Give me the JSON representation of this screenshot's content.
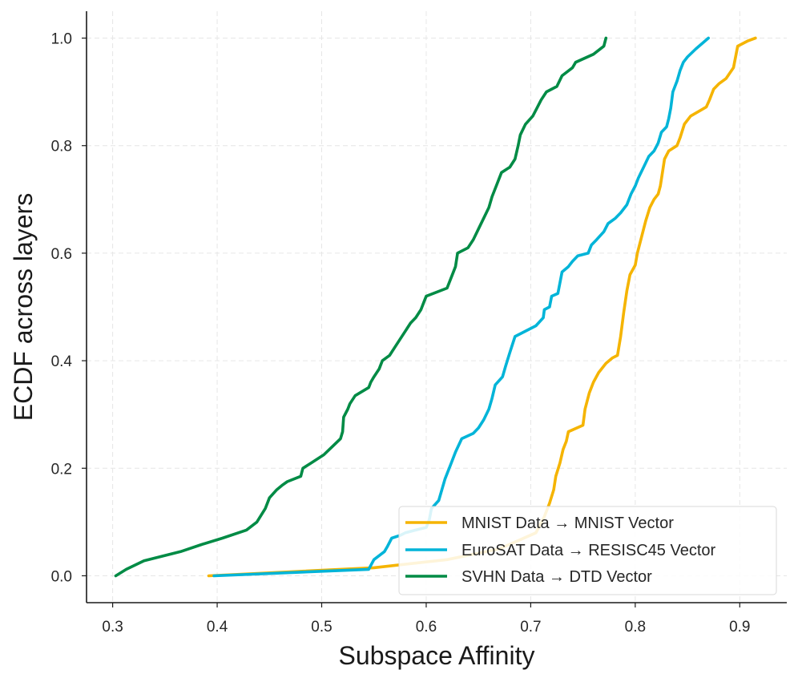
{
  "chart_data": {
    "type": "line",
    "title": "",
    "xlabel": "Subspace Affinity",
    "ylabel": "ECDF across layers",
    "xlim": [
      0.275,
      0.945
    ],
    "ylim": [
      -0.05,
      1.05
    ],
    "xticks": [
      0.3,
      0.4,
      0.5,
      0.6,
      0.7,
      0.8,
      0.9
    ],
    "xtick_labels": [
      "0.3",
      "0.4",
      "0.5",
      "0.6",
      "0.7",
      "0.8",
      "0.9"
    ],
    "yticks": [
      0.0,
      0.2,
      0.4,
      0.6,
      0.8,
      1.0
    ],
    "ytick_labels": [
      "0.0",
      "0.2",
      "0.4",
      "0.6",
      "0.8",
      "1.0"
    ],
    "grid": true,
    "legend_position": "lower-right",
    "series": [
      {
        "name": "MNIST Data → MNIST Vector",
        "color": "#f5b400",
        "points": [
          [
            0.392,
            0.0
          ],
          [
            0.55,
            0.015
          ],
          [
            0.62,
            0.03
          ],
          [
            0.67,
            0.05
          ],
          [
            0.705,
            0.08
          ],
          [
            0.713,
            0.11
          ],
          [
            0.718,
            0.135
          ],
          [
            0.722,
            0.16
          ],
          [
            0.724,
            0.185
          ],
          [
            0.728,
            0.21
          ],
          [
            0.731,
            0.235
          ],
          [
            0.734,
            0.25
          ],
          [
            0.736,
            0.268
          ],
          [
            0.75,
            0.28
          ],
          [
            0.752,
            0.31
          ],
          [
            0.756,
            0.34
          ],
          [
            0.76,
            0.36
          ],
          [
            0.765,
            0.378
          ],
          [
            0.772,
            0.395
          ],
          [
            0.778,
            0.405
          ],
          [
            0.783,
            0.41
          ],
          [
            0.786,
            0.445
          ],
          [
            0.789,
            0.49
          ],
          [
            0.792,
            0.53
          ],
          [
            0.795,
            0.56
          ],
          [
            0.8,
            0.578
          ],
          [
            0.802,
            0.6
          ],
          [
            0.806,
            0.63
          ],
          [
            0.81,
            0.66
          ],
          [
            0.814,
            0.685
          ],
          [
            0.818,
            0.7
          ],
          [
            0.822,
            0.71
          ],
          [
            0.824,
            0.725
          ],
          [
            0.826,
            0.75
          ],
          [
            0.828,
            0.775
          ],
          [
            0.832,
            0.79
          ],
          [
            0.84,
            0.8
          ],
          [
            0.843,
            0.815
          ],
          [
            0.847,
            0.84
          ],
          [
            0.853,
            0.855
          ],
          [
            0.862,
            0.865
          ],
          [
            0.868,
            0.872
          ],
          [
            0.871,
            0.885
          ],
          [
            0.875,
            0.905
          ],
          [
            0.88,
            0.915
          ],
          [
            0.887,
            0.925
          ],
          [
            0.894,
            0.945
          ],
          [
            0.898,
            0.985
          ],
          [
            0.908,
            0.995
          ],
          [
            0.915,
            1.0
          ]
        ]
      },
      {
        "name": "EuroSAT Data → RESISC45 Vector",
        "color": "#00b4d8",
        "points": [
          [
            0.397,
            0.0
          ],
          [
            0.545,
            0.012
          ],
          [
            0.55,
            0.03
          ],
          [
            0.56,
            0.045
          ],
          [
            0.563,
            0.055
          ],
          [
            0.567,
            0.07
          ],
          [
            0.575,
            0.075
          ],
          [
            0.58,
            0.08
          ],
          [
            0.59,
            0.085
          ],
          [
            0.6,
            0.09
          ],
          [
            0.603,
            0.105
          ],
          [
            0.605,
            0.125
          ],
          [
            0.612,
            0.14
          ],
          [
            0.615,
            0.16
          ],
          [
            0.618,
            0.18
          ],
          [
            0.624,
            0.21
          ],
          [
            0.628,
            0.23
          ],
          [
            0.634,
            0.255
          ],
          [
            0.645,
            0.265
          ],
          [
            0.65,
            0.275
          ],
          [
            0.655,
            0.29
          ],
          [
            0.66,
            0.31
          ],
          [
            0.663,
            0.33
          ],
          [
            0.666,
            0.355
          ],
          [
            0.673,
            0.37
          ],
          [
            0.676,
            0.39
          ],
          [
            0.68,
            0.415
          ],
          [
            0.685,
            0.445
          ],
          [
            0.69,
            0.45
          ],
          [
            0.705,
            0.465
          ],
          [
            0.712,
            0.48
          ],
          [
            0.713,
            0.495
          ],
          [
            0.718,
            0.5
          ],
          [
            0.72,
            0.52
          ],
          [
            0.726,
            0.525
          ],
          [
            0.728,
            0.545
          ],
          [
            0.73,
            0.565
          ],
          [
            0.736,
            0.575
          ],
          [
            0.74,
            0.585
          ],
          [
            0.745,
            0.595
          ],
          [
            0.755,
            0.6
          ],
          [
            0.758,
            0.615
          ],
          [
            0.763,
            0.625
          ],
          [
            0.77,
            0.64
          ],
          [
            0.774,
            0.655
          ],
          [
            0.781,
            0.665
          ],
          [
            0.786,
            0.675
          ],
          [
            0.792,
            0.69
          ],
          [
            0.796,
            0.71
          ],
          [
            0.8,
            0.725
          ],
          [
            0.803,
            0.74
          ],
          [
            0.808,
            0.76
          ],
          [
            0.813,
            0.78
          ],
          [
            0.818,
            0.79
          ],
          [
            0.822,
            0.805
          ],
          [
            0.825,
            0.825
          ],
          [
            0.83,
            0.835
          ],
          [
            0.832,
            0.85
          ],
          [
            0.834,
            0.87
          ],
          [
            0.836,
            0.9
          ],
          [
            0.84,
            0.92
          ],
          [
            0.843,
            0.94
          ],
          [
            0.846,
            0.955
          ],
          [
            0.85,
            0.965
          ],
          [
            0.858,
            0.98
          ],
          [
            0.87,
            1.0
          ]
        ]
      },
      {
        "name": "SVHN Data → DTD Vector",
        "color": "#008b45",
        "points": [
          [
            0.303,
            0.0
          ],
          [
            0.313,
            0.012
          ],
          [
            0.33,
            0.028
          ],
          [
            0.365,
            0.045
          ],
          [
            0.385,
            0.058
          ],
          [
            0.405,
            0.07
          ],
          [
            0.428,
            0.085
          ],
          [
            0.438,
            0.1
          ],
          [
            0.446,
            0.125
          ],
          [
            0.45,
            0.145
          ],
          [
            0.457,
            0.16
          ],
          [
            0.462,
            0.168
          ],
          [
            0.467,
            0.175
          ],
          [
            0.48,
            0.185
          ],
          [
            0.482,
            0.2
          ],
          [
            0.49,
            0.21
          ],
          [
            0.502,
            0.225
          ],
          [
            0.51,
            0.24
          ],
          [
            0.518,
            0.255
          ],
          [
            0.52,
            0.268
          ],
          [
            0.521,
            0.295
          ],
          [
            0.525,
            0.31
          ],
          [
            0.527,
            0.32
          ],
          [
            0.532,
            0.335
          ],
          [
            0.545,
            0.35
          ],
          [
            0.547,
            0.36
          ],
          [
            0.55,
            0.37
          ],
          [
            0.555,
            0.385
          ],
          [
            0.558,
            0.4
          ],
          [
            0.565,
            0.41
          ],
          [
            0.57,
            0.425
          ],
          [
            0.575,
            0.44
          ],
          [
            0.58,
            0.455
          ],
          [
            0.585,
            0.47
          ],
          [
            0.59,
            0.48
          ],
          [
            0.595,
            0.495
          ],
          [
            0.598,
            0.51
          ],
          [
            0.6,
            0.52
          ],
          [
            0.62,
            0.535
          ],
          [
            0.625,
            0.56
          ],
          [
            0.628,
            0.575
          ],
          [
            0.63,
            0.6
          ],
          [
            0.64,
            0.61
          ],
          [
            0.645,
            0.625
          ],
          [
            0.65,
            0.645
          ],
          [
            0.655,
            0.665
          ],
          [
            0.66,
            0.685
          ],
          [
            0.663,
            0.705
          ],
          [
            0.667,
            0.725
          ],
          [
            0.672,
            0.75
          ],
          [
            0.68,
            0.76
          ],
          [
            0.685,
            0.775
          ],
          [
            0.688,
            0.8
          ],
          [
            0.69,
            0.82
          ],
          [
            0.695,
            0.84
          ],
          [
            0.702,
            0.855
          ],
          [
            0.706,
            0.87
          ],
          [
            0.71,
            0.885
          ],
          [
            0.715,
            0.9
          ],
          [
            0.725,
            0.91
          ],
          [
            0.73,
            0.93
          ],
          [
            0.74,
            0.945
          ],
          [
            0.743,
            0.955
          ],
          [
            0.76,
            0.97
          ],
          [
            0.77,
            0.985
          ],
          [
            0.772,
            1.0
          ]
        ]
      }
    ]
  }
}
